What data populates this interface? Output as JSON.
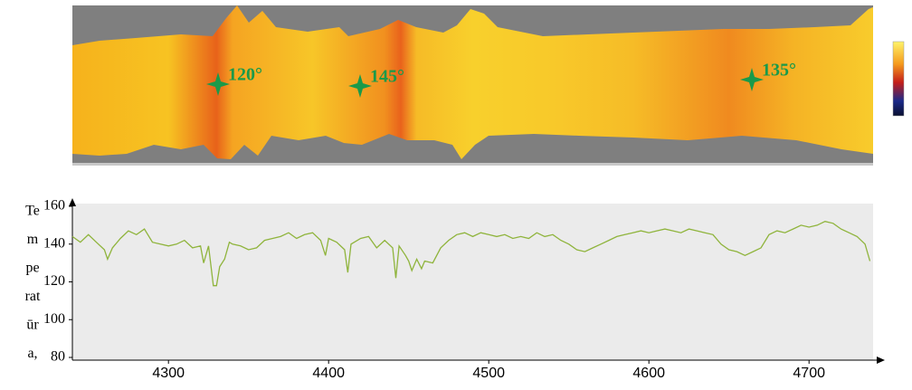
{
  "annotations": [
    {
      "label": "120°"
    },
    {
      "label": "145°"
    },
    {
      "label": "135°"
    }
  ],
  "chart_data": {
    "type": "line",
    "ylabel_lines": [
      "Te",
      "m",
      "pe",
      "rat",
      "ūr",
      "a,"
    ],
    "x": [
      4240,
      4245,
      4250,
      4255,
      4260,
      4262,
      4265,
      4270,
      4275,
      4280,
      4285,
      4290,
      4295,
      4300,
      4305,
      4310,
      4315,
      4320,
      4322,
      4325,
      4328,
      4330,
      4332,
      4335,
      4338,
      4340,
      4345,
      4350,
      4355,
      4360,
      4365,
      4370,
      4375,
      4380,
      4385,
      4390,
      4395,
      4398,
      4400,
      4405,
      4410,
      4412,
      4414,
      4420,
      4425,
      4430,
      4435,
      4440,
      4442,
      4444,
      4448,
      4450,
      4452,
      4455,
      4458,
      4460,
      4465,
      4470,
      4475,
      4480,
      4485,
      4490,
      4495,
      4500,
      4505,
      4510,
      4515,
      4520,
      4525,
      4530,
      4535,
      4540,
      4545,
      4550,
      4555,
      4560,
      4565,
      4570,
      4575,
      4580,
      4585,
      4590,
      4595,
      4600,
      4605,
      4610,
      4615,
      4620,
      4625,
      4630,
      4635,
      4640,
      4645,
      4650,
      4655,
      4660,
      4665,
      4670,
      4675,
      4680,
      4685,
      4690,
      4695,
      4700,
      4705,
      4710,
      4715,
      4720,
      4725,
      4730,
      4735,
      4738
    ],
    "series": [
      {
        "color": "#8fb43c",
        "values": [
          144,
          141,
          145,
          141,
          137,
          132,
          138,
          143,
          147,
          145,
          148,
          141,
          140,
          139,
          140,
          142,
          138,
          139,
          130,
          139,
          118,
          118,
          128,
          132,
          141,
          140,
          139,
          137,
          138,
          142,
          143,
          144,
          146,
          143,
          145,
          146,
          142,
          134,
          143,
          141,
          137,
          125,
          140,
          143,
          144,
          138,
          142,
          138,
          122,
          139,
          134,
          131,
          126,
          132,
          127,
          131,
          130,
          138,
          142,
          145,
          146,
          144,
          146,
          145,
          144,
          145,
          143,
          144,
          143,
          146,
          144,
          145,
          142,
          140,
          137,
          136,
          138,
          140,
          142,
          144,
          145,
          146,
          147,
          146,
          147,
          148,
          147,
          146,
          148,
          147,
          146,
          145,
          140,
          137,
          136,
          134,
          136,
          138,
          145,
          147,
          146,
          148,
          150,
          149,
          150,
          152,
          151,
          148,
          146,
          144,
          140,
          131
        ]
      }
    ],
    "xlim": [
      4240,
      4740
    ],
    "ylim": [
      80,
      160
    ],
    "xticks": [
      4300,
      4400,
      4500,
      4600,
      4700
    ],
    "yticks": [
      80,
      100,
      120,
      140,
      160
    ]
  }
}
